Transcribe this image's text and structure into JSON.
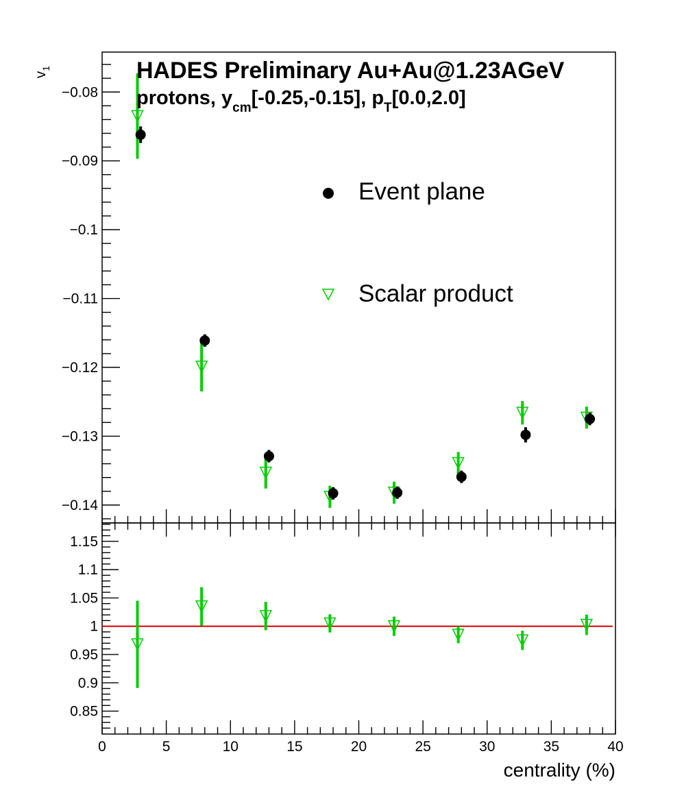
{
  "chart_data": [
    {
      "type": "scatter",
      "title": "HADES Preliminary Au+Au@1.23AGeV",
      "subtitle": {
        "p1": "protons, y",
        "s1": "cm",
        "p2": "[-0.25,-0.15], p",
        "s2": "T",
        "p3": "[0.0,2.0]"
      },
      "ylabel": {
        "base": "v",
        "sub": "1"
      },
      "xlim": [
        0,
        40
      ],
      "ylim": [
        -0.1426,
        -0.0742
      ],
      "yticks": [
        -0.08,
        -0.09,
        -0.1,
        -0.11,
        -0.12,
        -0.13,
        -0.14
      ],
      "ytick_labels": [
        "−0.08",
        "−0.09",
        "−0.1",
        "−0.11",
        "−0.12",
        "−0.13",
        "−0.14"
      ],
      "grid": false,
      "legend": {
        "placement": "center-right"
      },
      "series": [
        {
          "name": "Event plane",
          "marker": "filled-circle",
          "color": "#000000",
          "x": [
            3,
            8,
            13,
            18,
            23,
            28,
            33,
            38
          ],
          "y": [
            -0.0862,
            -0.1161,
            -0.1329,
            -0.1383,
            -0.1382,
            -0.1359,
            -0.1298,
            -0.1275
          ],
          "err": [
            0.0012,
            0.0009,
            0.0009,
            0.0009,
            0.0009,
            0.0009,
            0.0011,
            0.0009
          ]
        },
        {
          "name": "Scalar product",
          "marker": "open-triangle-down",
          "color": "#00cc00",
          "x": [
            2.75,
            7.75,
            12.75,
            17.75,
            22.75,
            27.75,
            32.75,
            37.75
          ],
          "y": [
            -0.0835,
            -0.1199,
            -0.1353,
            -0.1388,
            -0.1382,
            -0.1339,
            -0.1266,
            -0.1273
          ],
          "err": [
            0.0062,
            0.0036,
            0.0023,
            0.0016,
            0.0016,
            0.0016,
            0.0017,
            0.0016
          ]
        }
      ]
    },
    {
      "type": "scatter",
      "xlabel": "centrality (%)",
      "xlim": [
        0,
        40
      ],
      "ylim": [
        0.8095,
        1.1825
      ],
      "xticks": [
        0,
        5,
        10,
        15,
        20,
        25,
        30,
        35,
        40
      ],
      "xtick_labels": [
        "0",
        "5",
        "10",
        "15",
        "20",
        "25",
        "30",
        "35",
        "40"
      ],
      "yticks": [
        0.85,
        0.9,
        0.95,
        1.0,
        1.05,
        1.1,
        1.15
      ],
      "ytick_labels": [
        "0.85",
        "0.9",
        "0.95",
        "1",
        "1.05",
        "1.1",
        "1.15"
      ],
      "reference_line": {
        "y": 1.0,
        "color": "#dd0000"
      },
      "series": [
        {
          "marker": "open-triangle-down",
          "color": "#00cc00",
          "x": [
            2.75,
            7.75,
            12.75,
            17.75,
            22.75,
            27.75,
            32.75,
            37.75
          ],
          "y": [
            0.968,
            1.035,
            1.018,
            1.005,
            1.0,
            0.985,
            0.975,
            1.0025
          ],
          "err": [
            0.077,
            0.034,
            0.025,
            0.016,
            0.017,
            0.015,
            0.017,
            0.018
          ]
        }
      ]
    }
  ]
}
